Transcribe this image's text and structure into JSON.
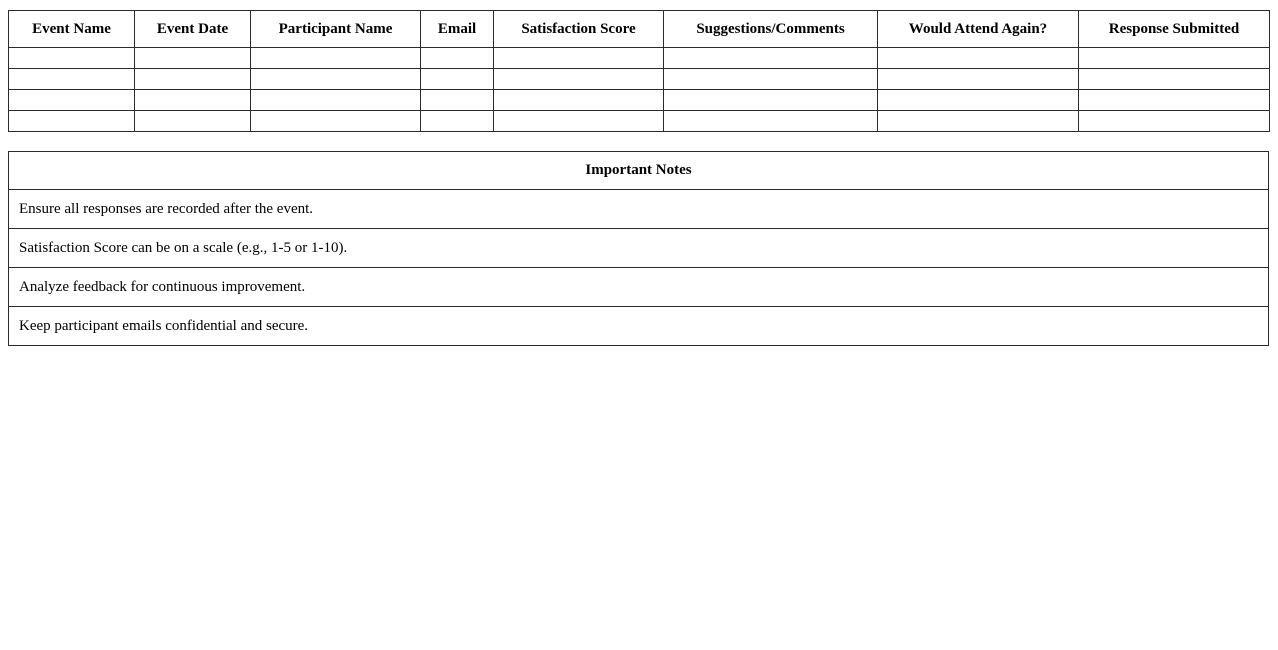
{
  "page": {
    "background_color": "#ffffff",
    "border_color": "#2b2b2b",
    "text_color": "#000000"
  },
  "feedback_table": {
    "headers": [
      "Event Name",
      "Event Date",
      "Participant Name",
      "Email",
      "Satisfaction Score",
      "Suggestions/Comments",
      "Would Attend Again?",
      "Response Submitted"
    ],
    "empty_row_count": 4
  },
  "notes_table": {
    "title": "Important Notes",
    "notes": [
      "Ensure all responses are recorded after the event.",
      "Satisfaction Score can be on a scale (e.g., 1-5 or 1-10).",
      "Analyze feedback for continuous improvement.",
      "Keep participant emails confidential and secure."
    ]
  }
}
